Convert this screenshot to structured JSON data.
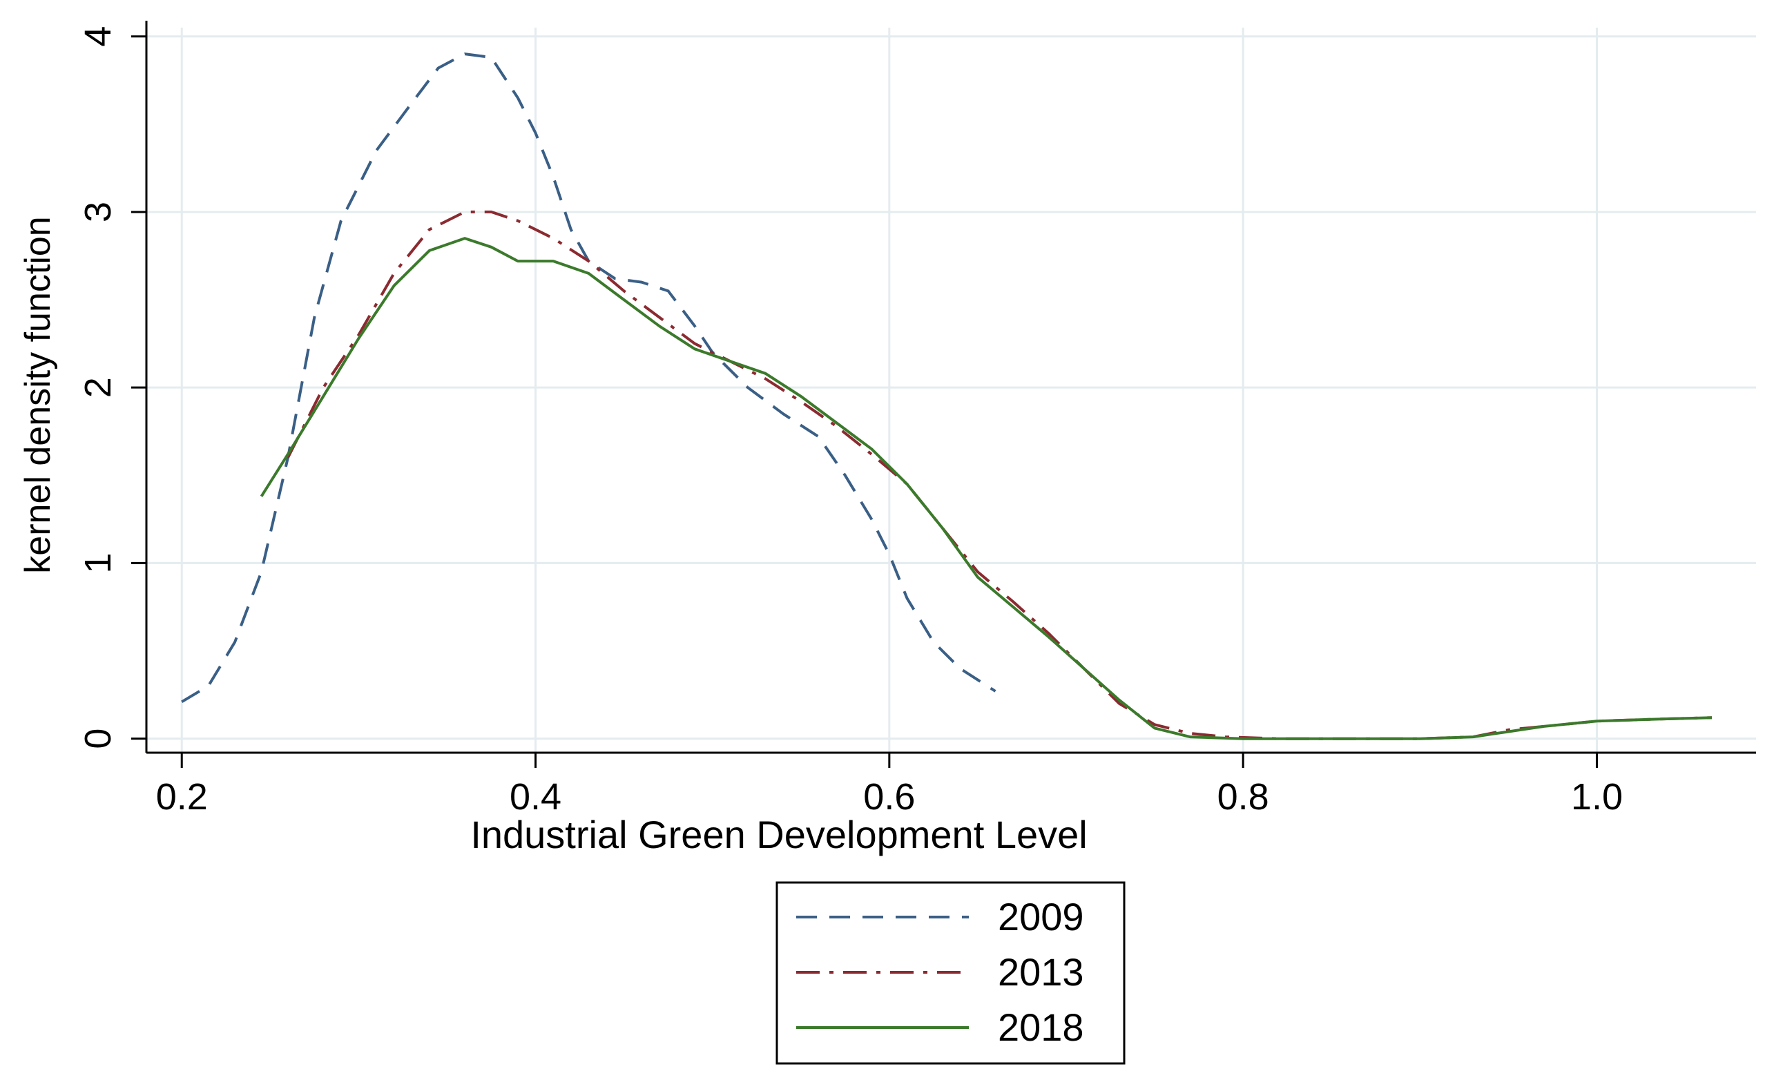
{
  "chart_data": {
    "type": "line",
    "title": "",
    "xlabel": "Industrial Green Development Level",
    "ylabel": "kernel density function",
    "xlim": [
      0.18,
      1.09
    ],
    "ylim": [
      -0.08,
      4.05
    ],
    "xticks": [
      0.2,
      0.4,
      0.6,
      0.8,
      1.0
    ],
    "xtick_labels": [
      "0.2",
      "0.4",
      "0.6",
      "0.8",
      "1.0"
    ],
    "yticks": [
      0,
      1,
      2,
      3,
      4
    ],
    "ytick_labels": [
      "0",
      "1",
      "2",
      "3",
      "4"
    ],
    "grid": true,
    "legend_position": "bottom",
    "series": [
      {
        "name": "2009",
        "color": "#3a5f86",
        "dash": "dash",
        "points": [
          [
            0.2,
            0.21
          ],
          [
            0.215,
            0.3
          ],
          [
            0.23,
            0.55
          ],
          [
            0.245,
            0.95
          ],
          [
            0.26,
            1.6
          ],
          [
            0.275,
            2.4
          ],
          [
            0.29,
            2.95
          ],
          [
            0.31,
            3.35
          ],
          [
            0.33,
            3.62
          ],
          [
            0.345,
            3.82
          ],
          [
            0.36,
            3.9
          ],
          [
            0.375,
            3.88
          ],
          [
            0.39,
            3.65
          ],
          [
            0.4,
            3.45
          ],
          [
            0.41,
            3.2
          ],
          [
            0.42,
            2.9
          ],
          [
            0.43,
            2.72
          ],
          [
            0.445,
            2.62
          ],
          [
            0.46,
            2.6
          ],
          [
            0.475,
            2.55
          ],
          [
            0.49,
            2.35
          ],
          [
            0.5,
            2.2
          ],
          [
            0.52,
            2.0
          ],
          [
            0.54,
            1.85
          ],
          [
            0.56,
            1.72
          ],
          [
            0.575,
            1.5
          ],
          [
            0.59,
            1.25
          ],
          [
            0.6,
            1.05
          ],
          [
            0.61,
            0.8
          ],
          [
            0.625,
            0.55
          ],
          [
            0.64,
            0.4
          ],
          [
            0.66,
            0.27
          ]
        ]
      },
      {
        "name": "2013",
        "color": "#8b2a30",
        "dash": "dashdot",
        "points": [
          [
            0.26,
            1.6
          ],
          [
            0.28,
            2.0
          ],
          [
            0.3,
            2.3
          ],
          [
            0.32,
            2.65
          ],
          [
            0.34,
            2.9
          ],
          [
            0.36,
            3.0
          ],
          [
            0.375,
            3.0
          ],
          [
            0.39,
            2.95
          ],
          [
            0.41,
            2.85
          ],
          [
            0.43,
            2.72
          ],
          [
            0.45,
            2.55
          ],
          [
            0.47,
            2.4
          ],
          [
            0.49,
            2.25
          ],
          [
            0.51,
            2.15
          ],
          [
            0.53,
            2.05
          ],
          [
            0.55,
            1.92
          ],
          [
            0.57,
            1.78
          ],
          [
            0.59,
            1.62
          ],
          [
            0.61,
            1.45
          ],
          [
            0.63,
            1.2
          ],
          [
            0.65,
            0.95
          ],
          [
            0.67,
            0.78
          ],
          [
            0.69,
            0.6
          ],
          [
            0.71,
            0.4
          ],
          [
            0.73,
            0.2
          ],
          [
            0.75,
            0.08
          ],
          [
            0.77,
            0.03
          ],
          [
            0.79,
            0.01
          ],
          [
            0.82,
            0.0
          ],
          [
            0.86,
            0.0
          ],
          [
            0.9,
            0.0
          ],
          [
            0.93,
            0.01
          ],
          [
            0.95,
            0.05
          ],
          [
            0.97,
            0.07
          ],
          [
            1.0,
            0.1
          ],
          [
            1.03,
            0.11
          ],
          [
            1.065,
            0.12
          ]
        ]
      },
      {
        "name": "2018",
        "color": "#3b7a2b",
        "dash": "solid",
        "points": [
          [
            0.245,
            1.38
          ],
          [
            0.26,
            1.62
          ],
          [
            0.28,
            1.95
          ],
          [
            0.3,
            2.28
          ],
          [
            0.32,
            2.58
          ],
          [
            0.34,
            2.78
          ],
          [
            0.36,
            2.85
          ],
          [
            0.375,
            2.8
          ],
          [
            0.39,
            2.72
          ],
          [
            0.41,
            2.72
          ],
          [
            0.43,
            2.65
          ],
          [
            0.45,
            2.5
          ],
          [
            0.47,
            2.35
          ],
          [
            0.49,
            2.22
          ],
          [
            0.51,
            2.15
          ],
          [
            0.53,
            2.08
          ],
          [
            0.55,
            1.95
          ],
          [
            0.57,
            1.8
          ],
          [
            0.59,
            1.65
          ],
          [
            0.61,
            1.45
          ],
          [
            0.63,
            1.2
          ],
          [
            0.65,
            0.92
          ],
          [
            0.67,
            0.75
          ],
          [
            0.69,
            0.58
          ],
          [
            0.71,
            0.4
          ],
          [
            0.73,
            0.22
          ],
          [
            0.75,
            0.06
          ],
          [
            0.77,
            0.01
          ],
          [
            0.8,
            0.0
          ],
          [
            0.85,
            0.0
          ],
          [
            0.9,
            0.0
          ],
          [
            0.93,
            0.01
          ],
          [
            0.95,
            0.04
          ],
          [
            0.97,
            0.07
          ],
          [
            1.0,
            0.1
          ],
          [
            1.03,
            0.11
          ],
          [
            1.065,
            0.12
          ]
        ]
      }
    ]
  }
}
